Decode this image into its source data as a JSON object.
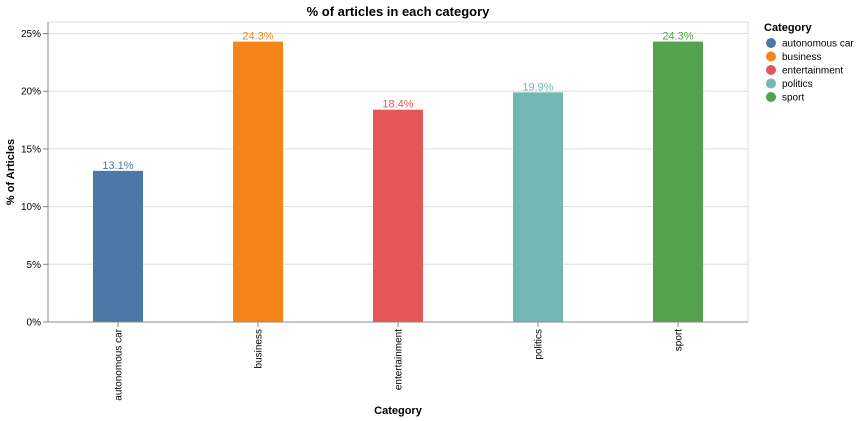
{
  "chart_data": {
    "type": "bar",
    "title": "% of articles in each category",
    "xlabel": "Category",
    "ylabel": "% of Articles",
    "categories": [
      "autonomous car",
      "business",
      "entertainment",
      "politics",
      "sport"
    ],
    "values": [
      13.1,
      24.3,
      18.4,
      19.9,
      24.3
    ],
    "value_labels": [
      "13.1%",
      "24.3%",
      "18.4%",
      "19.9%",
      "24.3%"
    ],
    "colors": [
      "#4c78a8",
      "#f58518",
      "#e45756",
      "#72b7b2",
      "#54a24b"
    ],
    "ylim": [
      0,
      26
    ],
    "yticks": [
      0,
      5,
      10,
      15,
      20,
      25
    ],
    "ytick_labels": [
      "0%",
      "5%",
      "10%",
      "15%",
      "20%",
      "25%"
    ],
    "grid": true,
    "legend": {
      "title": "Category",
      "position": "right",
      "entries": [
        "autonomous car",
        "business",
        "entertainment",
        "politics",
        "sport"
      ]
    }
  }
}
